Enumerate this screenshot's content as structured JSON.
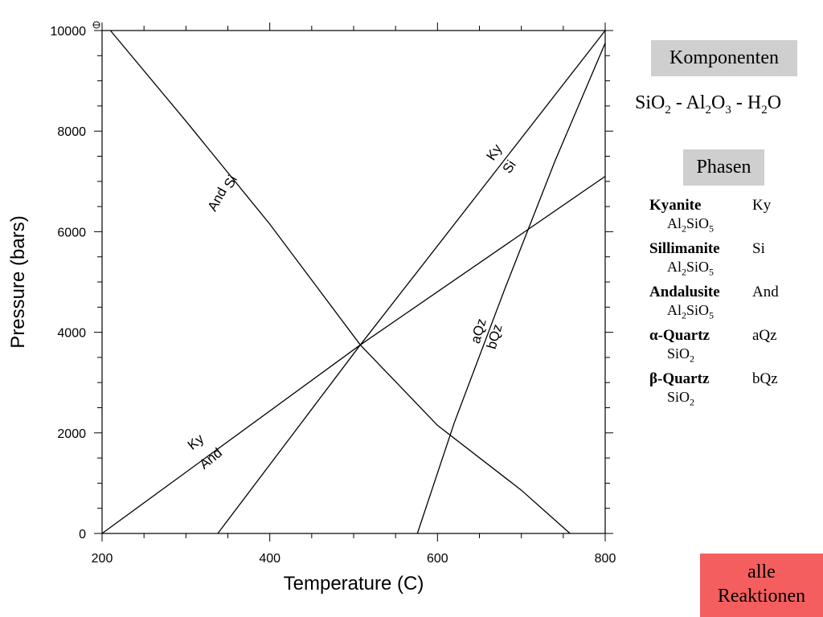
{
  "chart_data": {
    "type": "line",
    "xlabel": "Temperature (C)",
    "ylabel": "Pressure (bars)",
    "xlim": [
      200,
      800
    ],
    "ylim": [
      0,
      10000
    ],
    "x_ticks": [
      200,
      400,
      600,
      800
    ],
    "y_ticks": [
      0,
      2000,
      4000,
      6000,
      8000,
      10000
    ],
    "grid": false,
    "series": [
      {
        "points": [
          [
            210,
            10000
          ],
          [
            300,
            8200
          ],
          [
            400,
            6150
          ],
          [
            508,
            3750
          ],
          [
            600,
            2150
          ],
          [
            700,
            860
          ],
          [
            758,
            0
          ]
        ]
      },
      {
        "points": [
          [
            200,
            0
          ],
          [
            508,
            3750
          ],
          [
            800,
            7100
          ]
        ]
      },
      {
        "points": [
          [
            338,
            0
          ],
          [
            508,
            3750
          ],
          [
            800,
            10000
          ]
        ]
      },
      {
        "points": [
          [
            576,
            0
          ],
          [
            620,
            2200
          ],
          [
            680,
            4850
          ],
          [
            740,
            7400
          ],
          [
            800,
            9750
          ]
        ]
      }
    ],
    "annotations": [
      {
        "text": "Si",
        "x": 358,
        "y": 6950,
        "angle": -61
      },
      {
        "text": "And",
        "x": 342,
        "y": 6600,
        "angle": -61
      },
      {
        "text": "Ky",
        "x": 672,
        "y": 7530,
        "angle": -56
      },
      {
        "text": "Si",
        "x": 690,
        "y": 7240,
        "angle": -56
      },
      {
        "text": "aQz",
        "x": 654,
        "y": 4000,
        "angle": -74
      },
      {
        "text": "bQz",
        "x": 673,
        "y": 3890,
        "angle": -74
      },
      {
        "text": "Ky",
        "x": 315,
        "y": 1750,
        "angle": -39
      },
      {
        "text": "And",
        "x": 333,
        "y": 1420,
        "angle": -39
      }
    ]
  },
  "panel": {
    "komponenten_title": "Komponenten",
    "komponenten_formula": {
      "a": "SiO",
      "a_sub": "2",
      "sep1": " - Al",
      "b_sub": "2",
      "b2": "O",
      "b2_sub": "3",
      "sep2": " - H",
      "c_sub": "2",
      "c2": "O"
    },
    "phasen_title": "Phasen",
    "phases": [
      {
        "name": "Kyanite",
        "abbr": "Ky",
        "formula": {
          "p1": "Al",
          "s1": "2",
          "p2": "SiO",
          "s2": "5"
        }
      },
      {
        "name": "Sillimanite",
        "abbr": "Si",
        "formula": {
          "p1": "Al",
          "s1": "2",
          "p2": "SiO",
          "s2": "5"
        }
      },
      {
        "name": "Andalusite",
        "abbr": "And",
        "formula": {
          "p1": "Al",
          "s1": "2",
          "p2": "SiO",
          "s2": "5"
        }
      },
      {
        "name": "α-Quartz",
        "abbr": "aQz",
        "formula": {
          "p1": "SiO",
          "s1": "2",
          "p2": "",
          "s2": ""
        }
      },
      {
        "name": "β-Quartz",
        "abbr": "bQz",
        "formula": {
          "p1": "SiO",
          "s1": "2",
          "p2": "",
          "s2": ""
        }
      }
    ],
    "button_label_line1": "alle",
    "button_label_line2": "Reaktionen"
  }
}
